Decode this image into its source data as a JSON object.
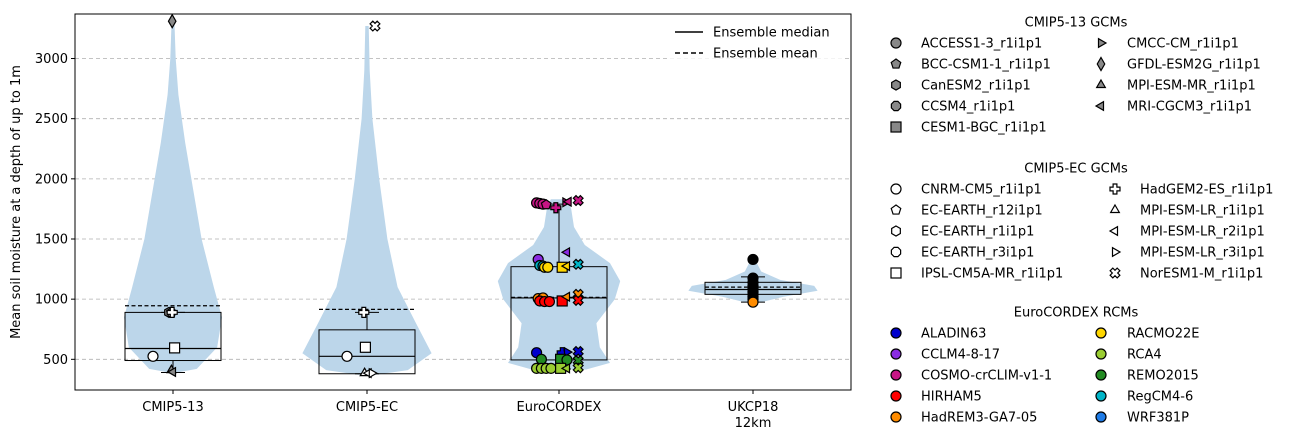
{
  "chart_data": {
    "type": "violin",
    "ylabel": "Mean soil moisture at a depth of up to 1m",
    "ylim": [
      245,
      3370
    ],
    "yticks": [
      500,
      1000,
      1500,
      2000,
      2500,
      3000
    ],
    "grid": "y-dashed",
    "categories": [
      {
        "line1": "CMIP5-13",
        "line2": ""
      },
      {
        "line1": "CMIP5-EC",
        "line2": ""
      },
      {
        "line1": "EuroCORDEX",
        "line2": ""
      },
      {
        "line1": "UKCP18",
        "line2": "12km"
      }
    ],
    "violin_color": "#bcd6ea",
    "violins": [
      {
        "profile": [
          [
            390,
            0.05
          ],
          [
            420,
            0.35
          ],
          [
            600,
            0.65
          ],
          [
            850,
            0.72
          ],
          [
            1100,
            0.6
          ],
          [
            1500,
            0.42
          ],
          [
            1900,
            0.3
          ],
          [
            2300,
            0.18
          ],
          [
            2700,
            0.08
          ],
          [
            3000,
            0.04
          ],
          [
            3310,
            0.02
          ]
        ]
      },
      {
        "profile": [
          [
            370,
            0.1
          ],
          [
            410,
            0.6
          ],
          [
            550,
            0.95
          ],
          [
            800,
            0.72
          ],
          [
            1100,
            0.45
          ],
          [
            1500,
            0.3
          ],
          [
            2000,
            0.18
          ],
          [
            2500,
            0.08
          ],
          [
            2900,
            0.04
          ],
          [
            3270,
            0.025
          ]
        ]
      },
      {
        "profile": [
          [
            415,
            0.4
          ],
          [
            470,
            0.75
          ],
          [
            600,
            0.6
          ],
          [
            800,
            0.55
          ],
          [
            1000,
            0.82
          ],
          [
            1150,
            0.9
          ],
          [
            1300,
            0.75
          ],
          [
            1450,
            0.38
          ],
          [
            1600,
            0.22
          ],
          [
            1750,
            0.18
          ],
          [
            1830,
            0.12
          ]
        ]
      },
      {
        "profile": [
          [
            975,
            0.12
          ],
          [
            1020,
            0.45
          ],
          [
            1070,
            0.95
          ],
          [
            1110,
            0.9
          ],
          [
            1160,
            0.4
          ],
          [
            1230,
            0.12
          ],
          [
            1330,
            0.03
          ]
        ]
      }
    ],
    "boxes": [
      {
        "q1": 490,
        "median": 590,
        "q3": 890,
        "mean": 945,
        "wlo": 390,
        "whi": 890
      },
      {
        "q1": 380,
        "median": 525,
        "q3": 745,
        "mean": 915,
        "wlo": 380,
        "whi": 890
      },
      {
        "q1": 495,
        "median": 1010,
        "q3": 1270,
        "mean": 1015,
        "wlo": 420,
        "whi": 1790
      },
      {
        "q1": 1040,
        "median": 1080,
        "q3": 1140,
        "mean": 1100,
        "wlo": 975,
        "whi": 1185
      }
    ],
    "points": [
      {
        "g": 0,
        "m": "circle",
        "f": "#ffffff",
        "dx": -0.25,
        "y": 525
      },
      {
        "g": 0,
        "m": "square",
        "f": "#ffffff",
        "dx": 0.02,
        "y": 595
      },
      {
        "g": 0,
        "m": "tri-up",
        "f": "#888888",
        "dx": -0.02,
        "y": 410
      },
      {
        "g": 0,
        "m": "tri-left",
        "f": "#888888",
        "dx": 0.0,
        "y": 395
      },
      {
        "g": 0,
        "m": "hexagon",
        "f": "#888888",
        "dx": -0.05,
        "y": 890
      },
      {
        "g": 0,
        "m": "pentagon",
        "f": "#888888",
        "dx": -0.02,
        "y": 890
      },
      {
        "g": 0,
        "m": "plus",
        "f": "#ffffff",
        "dx": -0.01,
        "y": 890
      },
      {
        "g": 0,
        "m": "diamond",
        "f": "#888888",
        "dx": -0.01,
        "y": 3310
      },
      {
        "g": 1,
        "m": "circle",
        "f": "#ffffff",
        "dx": -0.25,
        "y": 525
      },
      {
        "g": 1,
        "m": "square",
        "f": "#ffffff",
        "dx": -0.02,
        "y": 600
      },
      {
        "g": 1,
        "m": "tri-up",
        "f": "#ffffff",
        "dx": -0.03,
        "y": 385
      },
      {
        "g": 1,
        "m": "tri-left",
        "f": "#ffffff",
        "dx": 0.02,
        "y": 385
      },
      {
        "g": 1,
        "m": "tri-right",
        "f": "#ffffff",
        "dx": 0.06,
        "y": 385
      },
      {
        "g": 1,
        "m": "plus",
        "f": "#ffffff",
        "dx": -0.04,
        "y": 890
      },
      {
        "g": 1,
        "m": "xcross",
        "f": "#ffffff",
        "dx": 0.1,
        "y": 3270
      },
      {
        "g": 2,
        "m": "circle",
        "f": "#c71585",
        "dx": -0.28,
        "y": 1800
      },
      {
        "g": 2,
        "m": "circle",
        "f": "#c71585",
        "dx": -0.24,
        "y": 1795
      },
      {
        "g": 2,
        "m": "circle",
        "f": "#c71585",
        "dx": -0.2,
        "y": 1790
      },
      {
        "g": 2,
        "m": "pentagon",
        "f": "#c71585",
        "dx": -0.16,
        "y": 1785
      },
      {
        "g": 2,
        "m": "plus",
        "f": "#c71585",
        "dx": -0.04,
        "y": 1760
      },
      {
        "g": 2,
        "m": "tri-right",
        "f": "#c71585",
        "dx": 0.08,
        "y": 1805
      },
      {
        "g": 2,
        "m": "tri-left",
        "f": "#c71585",
        "dx": 0.12,
        "y": 1810
      },
      {
        "g": 2,
        "m": "xcross",
        "f": "#c71585",
        "dx": 0.24,
        "y": 1820
      },
      {
        "g": 2,
        "m": "tri-left",
        "f": "#8a2be2",
        "dx": 0.1,
        "y": 1390
      },
      {
        "g": 2,
        "m": "circle",
        "f": "#8a2be2",
        "dx": -0.26,
        "y": 1330
      },
      {
        "g": 2,
        "m": "circle",
        "f": "#00b5c8",
        "dx": -0.24,
        "y": 1280
      },
      {
        "g": 2,
        "m": "circle",
        "f": "#00b5c8",
        "dx": -0.2,
        "y": 1275
      },
      {
        "g": 2,
        "m": "circle",
        "f": "#ffd700",
        "dx": -0.18,
        "y": 1265
      },
      {
        "g": 2,
        "m": "circle",
        "f": "#ffd700",
        "dx": -0.14,
        "y": 1265
      },
      {
        "g": 2,
        "m": "square",
        "f": "#ffd700",
        "dx": 0.04,
        "y": 1265
      },
      {
        "g": 2,
        "m": "tri-left",
        "f": "#ffd700",
        "dx": 0.1,
        "y": 1275
      },
      {
        "g": 2,
        "m": "xcross",
        "f": "#00b5c8",
        "dx": 0.24,
        "y": 1290
      },
      {
        "g": 2,
        "m": "circle",
        "f": "#ff8c00",
        "dx": -0.26,
        "y": 1005
      },
      {
        "g": 2,
        "m": "circle",
        "f": "#ff8c00",
        "dx": -0.2,
        "y": 1010
      },
      {
        "g": 2,
        "m": "circle",
        "f": "#ff0000",
        "dx": -0.24,
        "y": 985
      },
      {
        "g": 2,
        "m": "circle",
        "f": "#ff0000",
        "dx": -0.18,
        "y": 980
      },
      {
        "g": 2,
        "m": "circle",
        "f": "#ff0000",
        "dx": -0.12,
        "y": 980
      },
      {
        "g": 2,
        "m": "square",
        "f": "#ff0000",
        "dx": 0.04,
        "y": 985
      },
      {
        "g": 2,
        "m": "tri-left",
        "f": "#ff8c00",
        "dx": 0.1,
        "y": 1020
      },
      {
        "g": 2,
        "m": "xcross",
        "f": "#ff8c00",
        "dx": 0.24,
        "y": 1040
      },
      {
        "g": 2,
        "m": "xcross",
        "f": "#ff0000",
        "dx": 0.24,
        "y": 990
      },
      {
        "g": 2,
        "m": "circle",
        "f": "#0000cd",
        "dx": -0.28,
        "y": 555
      },
      {
        "g": 2,
        "m": "plus",
        "f": "#0000cd",
        "dx": 0.04,
        "y": 555
      },
      {
        "g": 2,
        "m": "tri-right",
        "f": "#0000cd",
        "dx": 0.1,
        "y": 560
      },
      {
        "g": 2,
        "m": "xcross",
        "f": "#0000cd",
        "dx": 0.24,
        "y": 565
      },
      {
        "g": 2,
        "m": "circle",
        "f": "#228b22",
        "dx": -0.22,
        "y": 500
      },
      {
        "g": 2,
        "m": "square",
        "f": "#228b22",
        "dx": 0.02,
        "y": 500
      },
      {
        "g": 2,
        "m": "circle",
        "f": "#228b22",
        "dx": 0.1,
        "y": 495
      },
      {
        "g": 2,
        "m": "xcross",
        "f": "#228b22",
        "dx": 0.24,
        "y": 490
      },
      {
        "g": 2,
        "m": "circle",
        "f": "#9acd32",
        "dx": -0.28,
        "y": 425
      },
      {
        "g": 2,
        "m": "circle",
        "f": "#9acd32",
        "dx": -0.22,
        "y": 425
      },
      {
        "g": 2,
        "m": "circle",
        "f": "#9acd32",
        "dx": -0.16,
        "y": 425
      },
      {
        "g": 2,
        "m": "circle",
        "f": "#9acd32",
        "dx": -0.1,
        "y": 425
      },
      {
        "g": 2,
        "m": "square",
        "f": "#9acd32",
        "dx": 0.02,
        "y": 425
      },
      {
        "g": 2,
        "m": "tri-left",
        "f": "#9acd32",
        "dx": 0.1,
        "y": 425
      },
      {
        "g": 2,
        "m": "xcross",
        "f": "#9acd32",
        "dx": 0.24,
        "y": 430
      },
      {
        "g": 3,
        "m": "circle",
        "f": "#000000",
        "dx": 0.0,
        "y": 1330
      },
      {
        "g": 3,
        "m": "circle",
        "f": "#000000",
        "dx": 0.0,
        "y": 1175
      },
      {
        "g": 3,
        "m": "circle",
        "f": "#000000",
        "dx": 0.0,
        "y": 1140
      },
      {
        "g": 3,
        "m": "circle",
        "f": "#000000",
        "dx": 0.0,
        "y": 1110
      },
      {
        "g": 3,
        "m": "circle",
        "f": "#000000",
        "dx": 0.0,
        "y": 1085
      },
      {
        "g": 3,
        "m": "circle",
        "f": "#000000",
        "dx": 0.0,
        "y": 1060
      },
      {
        "g": 3,
        "m": "circle",
        "f": "#000000",
        "dx": 0.0,
        "y": 1040
      },
      {
        "g": 3,
        "m": "circle",
        "f": "#000000",
        "dx": 0.0,
        "y": 1020
      },
      {
        "g": 3,
        "m": "circle",
        "f": "#000000",
        "dx": 0.0,
        "y": 1000
      },
      {
        "g": 3,
        "m": "circle",
        "f": "#ff8c00",
        "dx": 0.0,
        "y": 975
      }
    ],
    "line_legend": [
      {
        "label": "Ensemble median",
        "style": "solid"
      },
      {
        "label": "Ensemble mean",
        "style": "dashed"
      }
    ],
    "legend_groups": [
      {
        "title": "CMIP5-13 GCMs",
        "col1": [
          {
            "label": "ACCESS1-3_r1i1p1",
            "m": "circle",
            "f": "#888888"
          },
          {
            "label": "BCC-CSM1-1_r1i1p1",
            "m": "pentagon",
            "f": "#888888"
          },
          {
            "label": "CanESM2_r1i1p1",
            "m": "hexagon",
            "f": "#888888"
          },
          {
            "label": "CCSM4_r1i1p1",
            "m": "octagon",
            "f": "#888888"
          },
          {
            "label": "CESM1-BGC_r1i1p1",
            "m": "square",
            "f": "#888888"
          }
        ],
        "col2": [
          {
            "label": "CMCC-CM_r1i1p1",
            "m": "tri-right",
            "f": "#888888"
          },
          {
            "label": "GFDL-ESM2G_r1i1p1",
            "m": "diamond",
            "f": "#888888"
          },
          {
            "label": "MPI-ESM-MR_r1i1p1",
            "m": "tri-up",
            "f": "#888888"
          },
          {
            "label": "MRI-CGCM3_r1i1p1",
            "m": "tri-left",
            "f": "#888888"
          }
        ]
      },
      {
        "title": "CMIP5-EC GCMs",
        "col1": [
          {
            "label": "CNRM-CM5_r1i1p1",
            "m": "circle",
            "f": "#ffffff"
          },
          {
            "label": "EC-EARTH_r12i1p1",
            "m": "pentagon",
            "f": "#ffffff"
          },
          {
            "label": "EC-EARTH_r1i1p1",
            "m": "hexagon",
            "f": "#ffffff"
          },
          {
            "label": "EC-EARTH_r3i1p1",
            "m": "octagon",
            "f": "#ffffff"
          },
          {
            "label": "IPSL-CM5A-MR_r1i1p1",
            "m": "square",
            "f": "#ffffff"
          }
        ],
        "col2": [
          {
            "label": "HadGEM2-ES_r1i1p1",
            "m": "plus",
            "f": "#ffffff"
          },
          {
            "label": "MPI-ESM-LR_r1i1p1",
            "m": "tri-up",
            "f": "#ffffff"
          },
          {
            "label": "MPI-ESM-LR_r2i1p1",
            "m": "tri-left",
            "f": "#ffffff"
          },
          {
            "label": "MPI-ESM-LR_r3i1p1",
            "m": "tri-right",
            "f": "#ffffff"
          },
          {
            "label": "NorESM1-M_r1i1p1",
            "m": "xcross",
            "f": "#ffffff"
          }
        ]
      },
      {
        "title": "EuroCORDEX RCMs",
        "col1": [
          {
            "label": "ALADIN63",
            "m": "circle",
            "f": "#0000cd"
          },
          {
            "label": "CCLM4-8-17",
            "m": "circle",
            "f": "#8a2be2"
          },
          {
            "label": "COSMO-crCLIM-v1-1",
            "m": "circle",
            "f": "#c71585"
          },
          {
            "label": "HIRHAM5",
            "m": "circle",
            "f": "#ff0000"
          },
          {
            "label": "HadREM3-GA7-05",
            "m": "circle",
            "f": "#ff8c00"
          }
        ],
        "col2": [
          {
            "label": "RACMO22E",
            "m": "circle",
            "f": "#ffd700"
          },
          {
            "label": "RCA4",
            "m": "circle",
            "f": "#9acd32"
          },
          {
            "label": "REMO2015",
            "m": "circle",
            "f": "#228b22"
          },
          {
            "label": "RegCM4-6",
            "m": "circle",
            "f": "#00b5c8"
          },
          {
            "label": "WRF381P",
            "m": "circle",
            "f": "#1e7be6"
          }
        ]
      }
    ]
  }
}
